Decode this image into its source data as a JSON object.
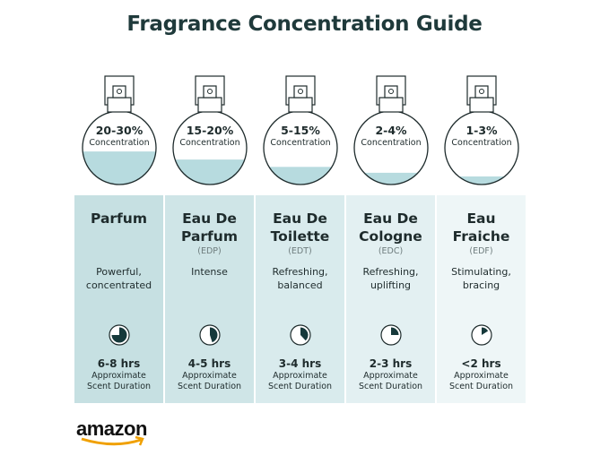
{
  "title": "Fragrance Concentration Guide",
  "colors": {
    "title": "#1f3a3b",
    "liquid": "#b7dbdf",
    "outline": "#1e2b2c",
    "card_dark": "#c8e1e3",
    "card_light": "#eef6f7",
    "pie": "#16393b"
  },
  "types": [
    {
      "name_lines": [
        "Parfum",
        ""
      ],
      "abbr": "",
      "desc_lines": [
        "Powerful,",
        "concentrated"
      ],
      "concentration": "20-30%",
      "concentration_label": "Concentration",
      "fill_level": 0.45,
      "hours": "6-8 hrs",
      "duration_lines": [
        "Approximate",
        "Scent Duration"
      ],
      "duration_fraction": 0.75
    },
    {
      "name_lines": [
        "Eau De",
        "Parfum"
      ],
      "abbr": "(EDP)",
      "desc_lines": [
        "Intense",
        ""
      ],
      "concentration": "15-20%",
      "concentration_label": "Concentration",
      "fill_level": 0.34,
      "hours": "4-5 hrs",
      "duration_lines": [
        "Approximate",
        "Scent Duration"
      ],
      "duration_fraction": 0.45
    },
    {
      "name_lines": [
        "Eau De",
        "Toilette"
      ],
      "abbr": "(EDT)",
      "desc_lines": [
        "Refreshing,",
        "balanced"
      ],
      "concentration": "5-15%",
      "concentration_label": "Concentration",
      "fill_level": 0.24,
      "hours": "3-4 hrs",
      "duration_lines": [
        "Approximate",
        "Scent Duration"
      ],
      "duration_fraction": 0.38
    },
    {
      "name_lines": [
        "Eau De",
        "Cologne"
      ],
      "abbr": "(EDC)",
      "desc_lines": [
        "Refreshing,",
        "uplifting"
      ],
      "concentration": "2-4%",
      "concentration_label": "Concentration",
      "fill_level": 0.16,
      "hours": "2-3 hrs",
      "duration_lines": [
        "Approximate",
        "Scent Duration"
      ],
      "duration_fraction": 0.25
    },
    {
      "name_lines": [
        "Eau",
        "Fraiche"
      ],
      "abbr": "(EDF)",
      "desc_lines": [
        "Stimulating,",
        "bracing"
      ],
      "concentration": "1-3%",
      "concentration_label": "Concentration",
      "fill_level": 0.11,
      "hours": "<2 hrs",
      "duration_lines": [
        "Approximate",
        "Scent Duration"
      ],
      "duration_fraction": 0.16
    }
  ],
  "logo": {
    "text": "amazon"
  }
}
